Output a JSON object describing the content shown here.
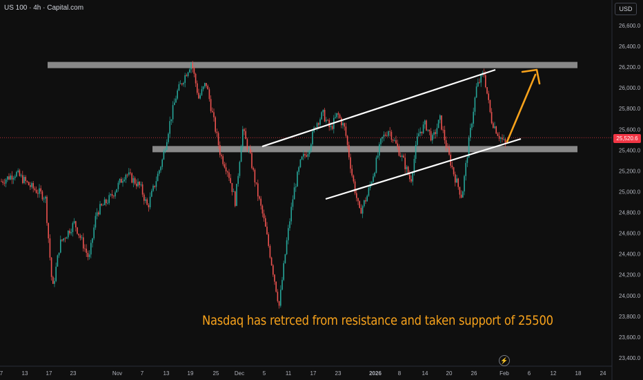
{
  "header": {
    "symbol": "US 100 · 4h · Capital.com",
    "currency": "USD"
  },
  "price_tag": "25,520.6",
  "annotation": "Nasdaq has retrced from resistance and taken support of 25500",
  "icons": {
    "bolt": "lightning-icon"
  },
  "colors": {
    "up": "#26a69a",
    "down": "#ef5350",
    "zone": "#9e9e9e",
    "channel": "#ffffff",
    "arrow": "#f7a21b",
    "price_line": "#f23645"
  },
  "chart_data": {
    "type": "candlestick",
    "title": "",
    "ylabel": "",
    "ylim": [
      23360,
      26790
    ],
    "y_ticks": [
      23400,
      23600,
      23800,
      24000,
      24200,
      24400,
      24600,
      24800,
      25000,
      25200,
      25400,
      25600,
      25800,
      26000,
      26200,
      26400,
      26600
    ],
    "y_tick_labels": [
      "23,400.0",
      "23,600.0",
      "23,800.0",
      "24,000.0",
      "24,200.0",
      "24,400.0",
      "24,600.0",
      "24,800.0",
      "25,000.0",
      "25,200.0",
      "25,400.0",
      "25,600.0",
      "25,800.0",
      "26,000.0",
      "26,200.0",
      "26,400.0",
      "26,600.0"
    ],
    "x_tick_labels": [
      "7",
      "13",
      "17",
      "23",
      "Nov",
      "7",
      "13",
      "19",
      "25",
      "Dec",
      "5",
      "11",
      "17",
      "23",
      "2026",
      "8",
      "14",
      "20",
      "26",
      "Feb",
      "6",
      "12",
      "18",
      "24"
    ],
    "current_price": 25520.6,
    "resistance_zone": [
      26190,
      26250
    ],
    "support_zone": [
      25380,
      25440
    ],
    "price_path": [
      [
        0,
        25100
      ],
      [
        2,
        25180
      ],
      [
        4,
        25050
      ],
      [
        6,
        24950
      ],
      [
        7,
        24050
      ],
      [
        8,
        24500
      ],
      [
        10,
        24700
      ],
      [
        12,
        24350
      ],
      [
        13,
        24800
      ],
      [
        15,
        24950
      ],
      [
        17,
        25180
      ],
      [
        19,
        25050
      ],
      [
        20,
        24850
      ],
      [
        22,
        25300
      ],
      [
        23,
        25650
      ],
      [
        24,
        25950
      ],
      [
        26,
        26250
      ],
      [
        27,
        25900
      ],
      [
        28,
        26050
      ],
      [
        29,
        25700
      ],
      [
        30,
        25350
      ],
      [
        31,
        25200
      ],
      [
        32,
        24900
      ],
      [
        33,
        25600
      ],
      [
        34,
        25350
      ],
      [
        35,
        25000
      ],
      [
        36,
        24700
      ],
      [
        37,
        24300
      ],
      [
        38,
        23900
      ],
      [
        39,
        24500
      ],
      [
        40,
        25000
      ],
      [
        41,
        25300
      ],
      [
        42,
        25400
      ],
      [
        43,
        25650
      ],
      [
        44,
        25750
      ],
      [
        45,
        25600
      ],
      [
        46,
        25750
      ],
      [
        47,
        25600
      ],
      [
        48,
        25150
      ],
      [
        49,
        24800
      ],
      [
        50,
        24950
      ],
      [
        51,
        25200
      ],
      [
        52,
        25500
      ],
      [
        53,
        25600
      ],
      [
        54,
        25450
      ],
      [
        55,
        25300
      ],
      [
        56,
        25100
      ],
      [
        57,
        25550
      ],
      [
        58,
        25650
      ],
      [
        59,
        25500
      ],
      [
        60,
        25700
      ],
      [
        61,
        25400
      ],
      [
        62,
        25150
      ],
      [
        63,
        24950
      ],
      [
        64,
        25500
      ],
      [
        65,
        26000
      ],
      [
        66,
        26150
      ],
      [
        67,
        25700
      ],
      [
        68,
        25550
      ],
      [
        69,
        25450
      ]
    ],
    "path_x_range": [
      0,
      69
    ],
    "grid": false,
    "legend": "none"
  }
}
